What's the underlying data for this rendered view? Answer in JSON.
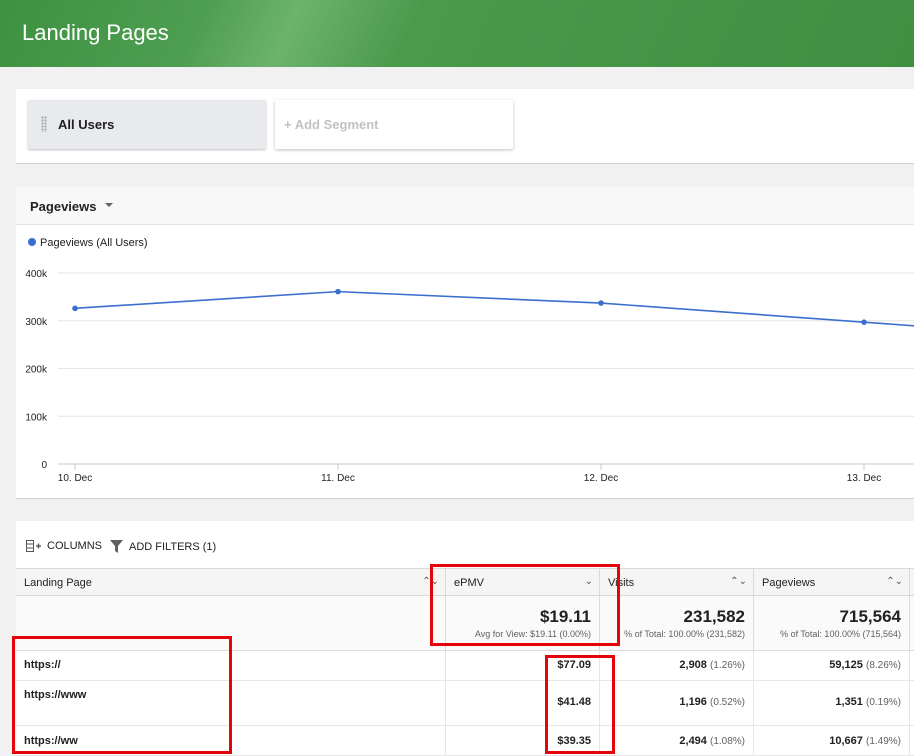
{
  "header": {
    "title": "Landing Pages"
  },
  "segments": {
    "active": "All Users",
    "add": "+ Add Segment"
  },
  "chart_header": {
    "metric": "Pageviews"
  },
  "chart_data": {
    "type": "line",
    "title": "",
    "xlabel": "",
    "ylabel": "",
    "categories": [
      "10. Dec",
      "11. Dec",
      "12. Dec",
      "13. Dec"
    ],
    "y_ticks": [
      "0",
      "100k",
      "200k",
      "300k",
      "400k"
    ],
    "ylim": [
      0,
      400000
    ],
    "grid": true,
    "legend": "top-left",
    "series": [
      {
        "name": "Pageviews (All Users)",
        "color": "#3b6fce",
        "values": [
          326000,
          361000,
          337000,
          297000
        ]
      }
    ]
  },
  "toolbar": {
    "columns": "COLUMNS",
    "filters": "ADD FILTERS (1)"
  },
  "table": {
    "headers": {
      "landing": "Landing Page",
      "epmv": "ePMV",
      "visits": "Visits",
      "pageviews": "Pageviews"
    },
    "totals": {
      "epmv": "$19.11",
      "epmv_sub": "Avg for View: $19.11 (0.00%)",
      "visits": "231,582",
      "visits_sub": "% of Total: 100.00% (231,582)",
      "pageviews": "715,564",
      "pageviews_sub": "% of Total: 100.00% (715,564)"
    },
    "rows": [
      {
        "url": "https://",
        "epmv": "$77.09",
        "visits": "2,908",
        "visits_pct": "(1.26%)",
        "pageviews": "59,125",
        "pageviews_pct": "(8.26%)"
      },
      {
        "url": "https://www",
        "epmv": "$41.48",
        "visits": "1,196",
        "visits_pct": "(0.52%)",
        "pageviews": "1,351",
        "pageviews_pct": "(0.19%)"
      },
      {
        "url": "https://ww",
        "epmv": "$39.35",
        "visits": "2,494",
        "visits_pct": "(1.08%)",
        "pageviews": "10,667",
        "pageviews_pct": "(1.49%)"
      }
    ]
  }
}
